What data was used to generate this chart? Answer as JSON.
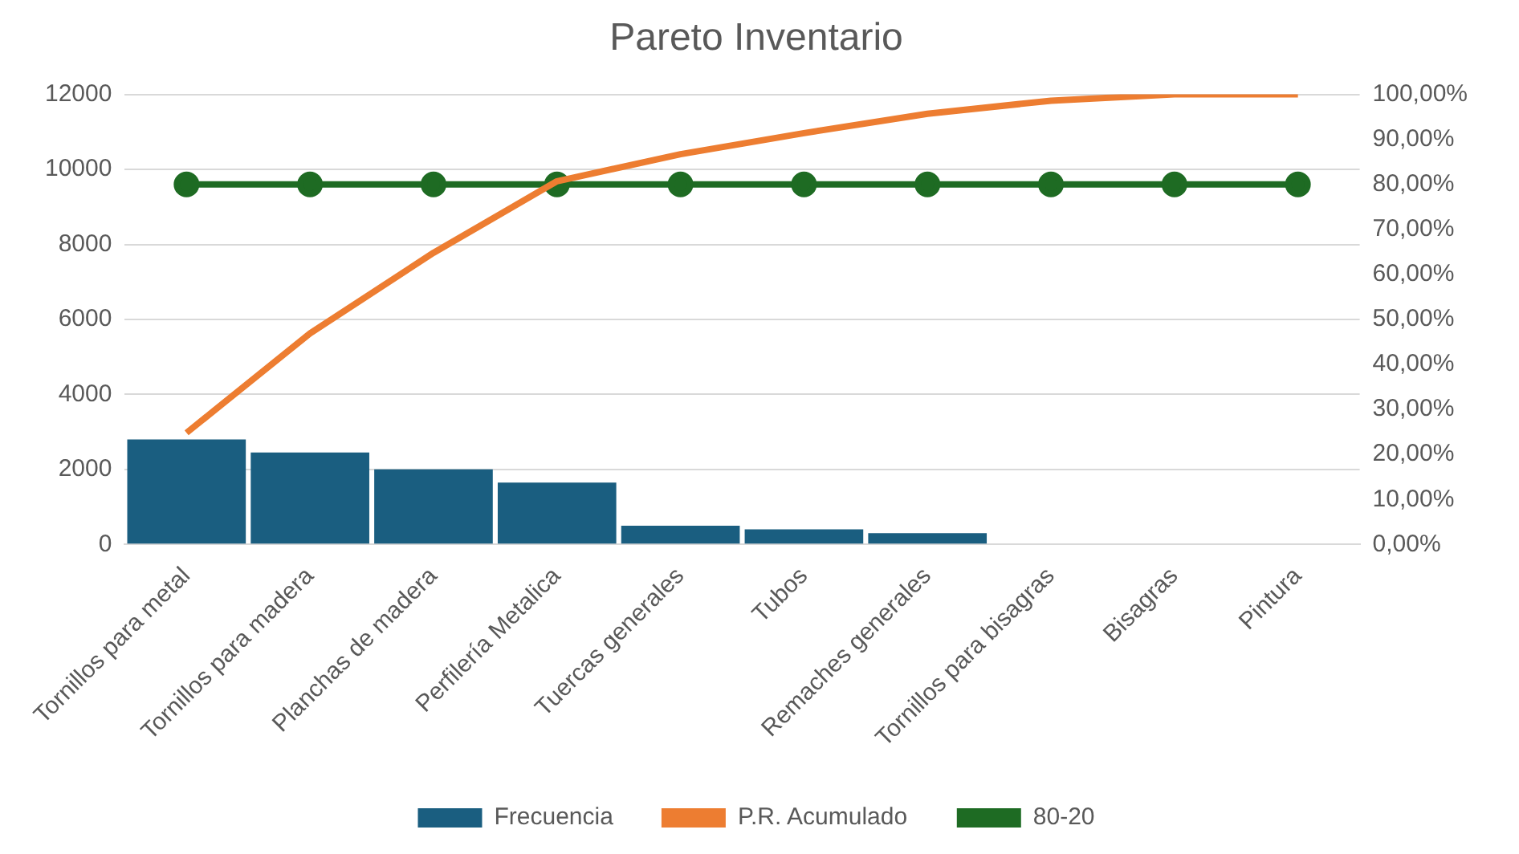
{
  "chart_data": {
    "type": "bar",
    "title": "Pareto Inventario",
    "categories": [
      "Tornillos para metal",
      "Tornillos para madera",
      "Planchas de madera",
      "Perfilería Metalica",
      "Tuercas generales",
      "Tubos",
      "Remaches generales",
      "Tornillos para bisagras",
      "Bisagras",
      "Pintura"
    ],
    "series": [
      {
        "name": "Frecuencia",
        "color": "#1a5e80",
        "values": [
          2800,
          2450,
          2000,
          1650,
          500,
          400,
          300,
          0,
          0,
          0
        ]
      },
      {
        "name": "P.R. Acumulado",
        "type": "line",
        "axis": "y2",
        "color": "#ed7d31",
        "marker": "none",
        "values": [
          24.8,
          46.9,
          64.8,
          80.7,
          86.7,
          91.4,
          95.7,
          98.6,
          100,
          100
        ]
      },
      {
        "name": "80-20",
        "type": "line",
        "axis": "y2",
        "color": "#1e6b23",
        "marker": "circle",
        "values": [
          80,
          80,
          80,
          80,
          80,
          80,
          80,
          80,
          80,
          80
        ]
      }
    ],
    "ylim": [
      0,
      12000
    ],
    "yticks": [
      0,
      2000,
      4000,
      6000,
      8000,
      10000,
      12000
    ],
    "y2lim": [
      0,
      100
    ],
    "y2ticks": [
      {
        "value": 0,
        "label": "0,00%"
      },
      {
        "value": 10,
        "label": "10,00%"
      },
      {
        "value": 20,
        "label": "20,00%"
      },
      {
        "value": 30,
        "label": "30,00%"
      },
      {
        "value": 40,
        "label": "40,00%"
      },
      {
        "value": 50,
        "label": "50,00%"
      },
      {
        "value": 60,
        "label": "60,00%"
      },
      {
        "value": 70,
        "label": "70,00%"
      },
      {
        "value": 80,
        "label": "80,00%"
      },
      {
        "value": 90,
        "label": "90,00%"
      },
      {
        "value": 100,
        "label": "100,00%"
      }
    ],
    "grid": "y",
    "legend": "bottom"
  }
}
